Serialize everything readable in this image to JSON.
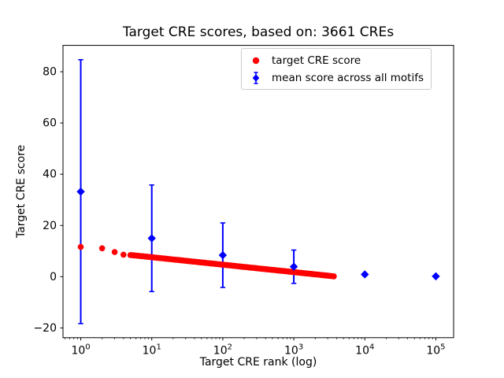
{
  "figure": {
    "title": "Target CRE scores, based on: 3661 CREs",
    "xlabel": "Target CRE rank (log)",
    "ylabel": "Target CRE score"
  },
  "legend": {
    "position": "upper right",
    "items": [
      {
        "label": "target CRE score",
        "marker": "circle",
        "color": "#ff0000"
      },
      {
        "label": "mean score across all motifs",
        "marker": "diamond-with-errorbar",
        "color": "#0000ff"
      }
    ]
  },
  "chart_data": {
    "type": "scatter",
    "title": "Target CRE scores, based on: 3661 CREs",
    "xlabel": "Target CRE rank (log)",
    "ylabel": "Target CRE score",
    "x_scale": "log",
    "x_log_range": [
      -0.25,
      5.25
    ],
    "ylim": [
      -23.8,
      90.3
    ],
    "xticks": [
      1,
      10,
      100,
      1000,
      10000,
      100000
    ],
    "yticks": [
      -20,
      0,
      20,
      40,
      60,
      80
    ],
    "grid": false,
    "n_cres": 3661,
    "colors": {
      "target": "#ff0000",
      "mean": "#0000ff",
      "axis": "#000000",
      "legend_border": "#cccccc"
    },
    "series": [
      {
        "name": "mean score across all motifs",
        "marker": "diamond",
        "color": "#0000ff",
        "x": [
          1,
          10,
          100,
          1000,
          10000,
          100000
        ],
        "y": [
          33.2,
          15.0,
          8.4,
          3.9,
          0.9,
          0.15
        ],
        "yerr": [
          51.5,
          20.8,
          12.6,
          6.5,
          0.5,
          0.2
        ]
      },
      {
        "name": "target CRE score",
        "marker": "circle",
        "color": "#ff0000",
        "points": [
          [
            1,
            11.6
          ],
          [
            2,
            11.1
          ],
          [
            3,
            9.6
          ],
          [
            4,
            8.6
          ],
          [
            5,
            8.45
          ],
          [
            6,
            8.25
          ],
          [
            7,
            8.05
          ],
          [
            8,
            7.9
          ],
          [
            9,
            7.75
          ],
          [
            10,
            7.6
          ],
          [
            12,
            7.37
          ],
          [
            14,
            7.18
          ],
          [
            17,
            6.93
          ],
          [
            20,
            6.73
          ],
          [
            24,
            6.5
          ],
          [
            29,
            6.26
          ],
          [
            35,
            6.02
          ],
          [
            42,
            5.79
          ],
          [
            50,
            5.57
          ],
          [
            60,
            5.34
          ],
          [
            72,
            5.11
          ],
          [
            86,
            4.89
          ],
          [
            100,
            4.7
          ],
          [
            120,
            4.47
          ],
          [
            145,
            4.23
          ],
          [
            175,
            3.99
          ],
          [
            210,
            3.76
          ],
          [
            250,
            3.54
          ],
          [
            300,
            3.31
          ],
          [
            360,
            3.08
          ],
          [
            430,
            2.86
          ],
          [
            520,
            2.62
          ],
          [
            620,
            2.4
          ],
          [
            750,
            2.16
          ],
          [
            900,
            1.93
          ],
          [
            1080,
            1.7
          ],
          [
            1300,
            1.47
          ],
          [
            1560,
            1.24
          ],
          [
            1870,
            1.01
          ],
          [
            2240,
            0.78
          ],
          [
            2690,
            0.55
          ],
          [
            3200,
            0.33
          ],
          [
            3661,
            0.16
          ]
        ]
      }
    ]
  }
}
